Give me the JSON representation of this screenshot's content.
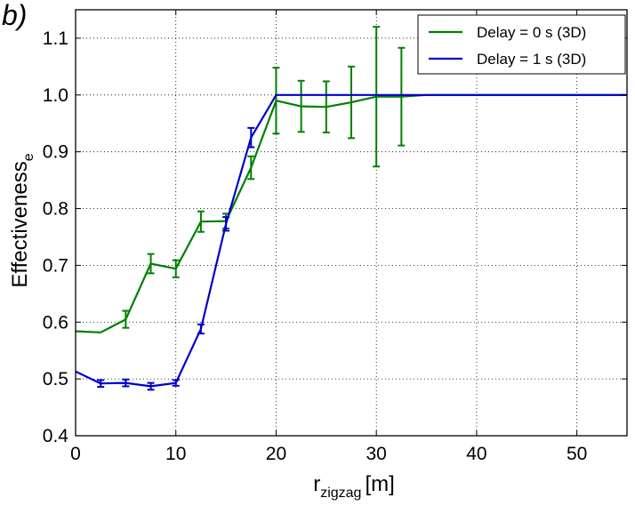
{
  "panel_label": "b)",
  "chart_data": {
    "type": "line",
    "title": "",
    "xlabel": {
      "main": "r",
      "sub": "zigzag",
      "unit": "[m]"
    },
    "ylabel": {
      "main": "Effectiveness",
      "sub": "e"
    },
    "xlim": [
      0,
      55
    ],
    "ylim": [
      0.4,
      1.15
    ],
    "xticks": [
      0,
      10,
      20,
      30,
      40,
      50
    ],
    "xtick_labels": [
      "0",
      "10",
      "20",
      "30",
      "40",
      "50"
    ],
    "yticks": [
      0.4,
      0.5,
      0.6,
      0.7,
      0.8,
      0.9,
      1.0,
      1.1
    ],
    "ytick_labels": [
      "0.4",
      "0.5",
      "0.6",
      "0.7",
      "0.8",
      "0.9",
      "1.0",
      "1.1"
    ],
    "grid": true,
    "grid_style": "dotted",
    "legend_position": "top-right",
    "series": [
      {
        "name": "Delay = 0 s (3D)",
        "color": "#008000",
        "x": [
          0,
          2.5,
          5,
          7.5,
          10,
          12.5,
          15,
          17.5,
          20,
          22.5,
          25,
          27.5,
          30,
          32.5,
          35,
          37.5,
          40,
          42.5,
          45,
          47.5,
          50,
          52.5,
          55
        ],
        "y": [
          0.584,
          0.582,
          0.605,
          0.703,
          0.694,
          0.777,
          0.778,
          0.872,
          0.99,
          0.98,
          0.979,
          0.987,
          0.997,
          0.997,
          1.0,
          1.0,
          1.0,
          1.0,
          1.0,
          1.0,
          1.0,
          1.0,
          1.0
        ],
        "err": [
          0.0,
          0.0,
          0.015,
          0.017,
          0.015,
          0.018,
          0.013,
          0.02,
          0.058,
          0.045,
          0.045,
          0.063,
          0.123,
          0.086,
          0,
          0,
          0,
          0,
          0,
          0,
          0,
          0,
          0
        ]
      },
      {
        "name": "Delay = 1 s (3D)",
        "color": "#0000cc",
        "x": [
          0,
          2.5,
          5,
          7.5,
          10,
          12.5,
          15,
          17.5,
          20,
          22.5,
          25,
          27.5,
          30,
          32.5,
          35,
          37.5,
          40,
          42.5,
          45,
          47.5,
          50,
          52.5,
          55
        ],
        "y": [
          0.513,
          0.492,
          0.493,
          0.487,
          0.493,
          0.588,
          0.773,
          0.925,
          1.0,
          1.0,
          1.0,
          1.0,
          1.0,
          1.0,
          1.0,
          1.0,
          1.0,
          1.0,
          1.0,
          1.0,
          1.0,
          1.0,
          1.0
        ],
        "err": [
          0.0,
          0.006,
          0.006,
          0.006,
          0.005,
          0.008,
          0.012,
          0.017,
          0,
          0,
          0,
          0,
          0,
          0,
          0,
          0,
          0,
          0,
          0,
          0,
          0,
          0,
          0
        ]
      }
    ]
  }
}
